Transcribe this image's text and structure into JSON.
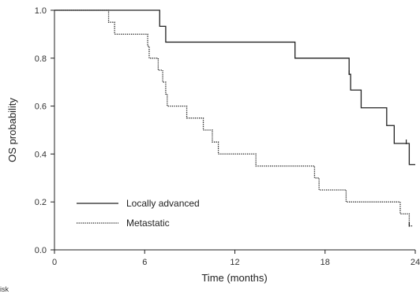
{
  "chart_data": {
    "type": "line",
    "subtype": "kaplan-meier step survival curve",
    "title": "",
    "xlabel": "Time (months)",
    "ylabel": "OS probability",
    "xlim": [
      0,
      24
    ],
    "ylim": [
      0,
      1.0
    ],
    "x_ticks": [
      "0",
      "6",
      "12",
      "18",
      "24"
    ],
    "y_ticks": [
      "0.0",
      "0.2",
      "0.4",
      "0.6",
      "0.8",
      "1.0"
    ],
    "grid": false,
    "legend_position": "bottom-left",
    "series": [
      {
        "name": "Locally advanced",
        "style": "solid",
        "color": "#222222",
        "steps": [
          [
            0,
            1.0
          ],
          [
            7.0,
            0.933
          ],
          [
            7.4,
            0.867
          ],
          [
            16.0,
            0.8
          ],
          [
            19.6,
            0.733
          ],
          [
            19.7,
            0.667
          ],
          [
            20.4,
            0.593
          ],
          [
            22.1,
            0.519
          ],
          [
            22.6,
            0.444
          ],
          [
            23.6,
            0.356
          ],
          [
            24.0,
            0.356
          ]
        ],
        "censored": [
          [
            19.6,
            0.733
          ],
          [
            23.4,
            0.444
          ]
        ]
      },
      {
        "name": "Metastatic",
        "style": "dotted",
        "color": "#222222",
        "steps": [
          [
            0,
            1.0
          ],
          [
            3.6,
            0.95
          ],
          [
            4.0,
            0.9
          ],
          [
            6.2,
            0.85
          ],
          [
            6.3,
            0.8
          ],
          [
            6.9,
            0.75
          ],
          [
            7.2,
            0.7
          ],
          [
            7.4,
            0.65
          ],
          [
            7.5,
            0.6
          ],
          [
            8.8,
            0.55
          ],
          [
            9.9,
            0.5
          ],
          [
            10.5,
            0.45
          ],
          [
            10.9,
            0.4
          ],
          [
            13.4,
            0.35
          ],
          [
            17.3,
            0.3
          ],
          [
            17.6,
            0.25
          ],
          [
            19.4,
            0.2
          ],
          [
            23.0,
            0.15
          ],
          [
            23.6,
            0.1
          ],
          [
            23.8,
            0.1
          ]
        ],
        "censored": [
          [
            23.6,
            0.1
          ]
        ]
      }
    ]
  },
  "footer_text": "isk"
}
